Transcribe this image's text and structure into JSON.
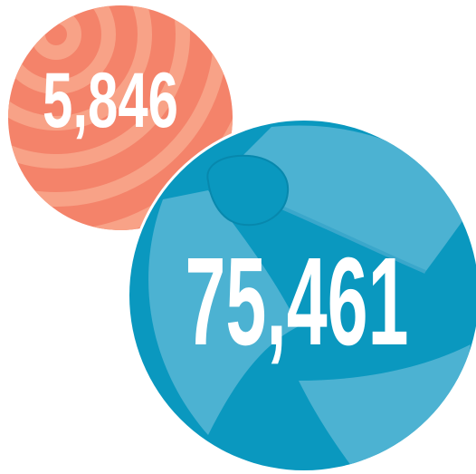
{
  "balls": [
    {
      "label": "5,846"
    },
    {
      "label": "75,461"
    }
  ]
}
